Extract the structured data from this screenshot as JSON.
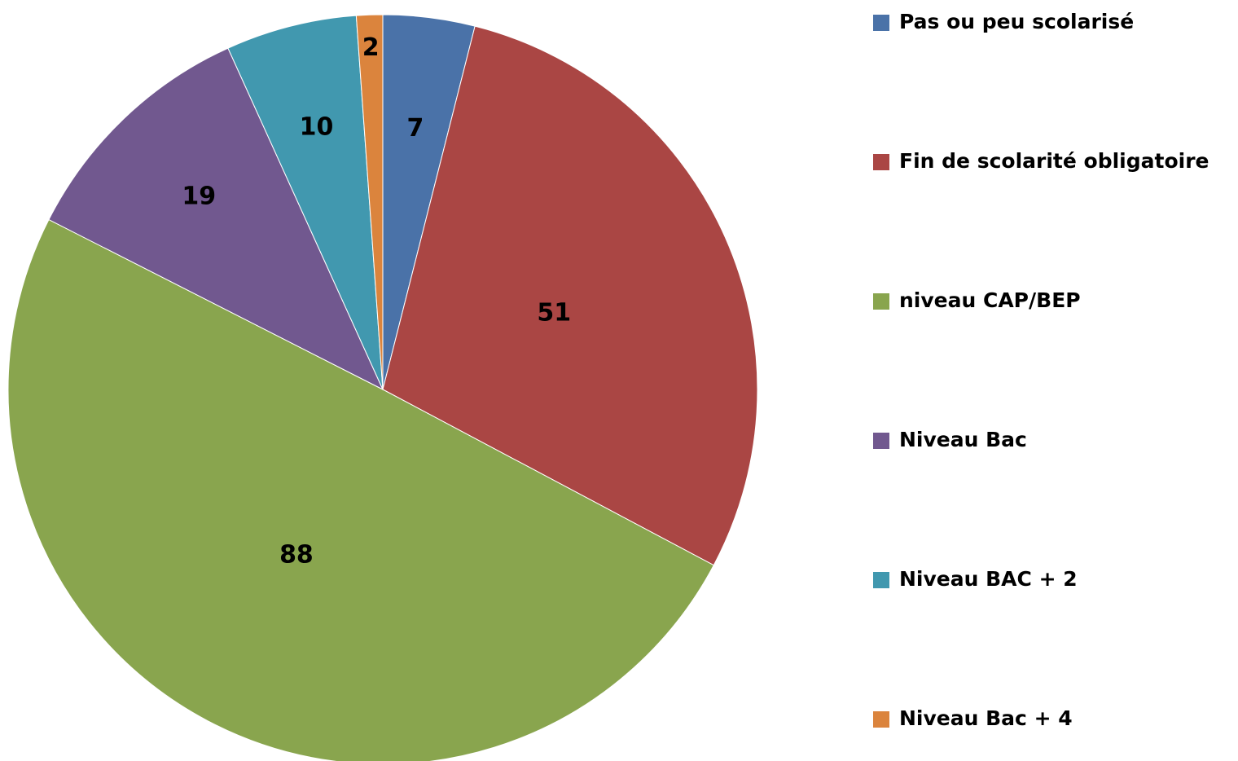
{
  "chart_data": {
    "type": "pie",
    "categories": [
      "Pas ou peu scolarisé",
      "Fin de scolarité obligatoire",
      "niveau CAP/BEP",
      "Niveau Bac",
      "Niveau BAC + 2",
      "Niveau Bac + 4"
    ],
    "values": [
      7,
      51,
      88,
      19,
      10,
      2
    ],
    "colors": [
      "#4a72a8",
      "#aa4644",
      "#89a54e",
      "#71588f",
      "#4198af",
      "#db843d"
    ],
    "legend": "right"
  }
}
